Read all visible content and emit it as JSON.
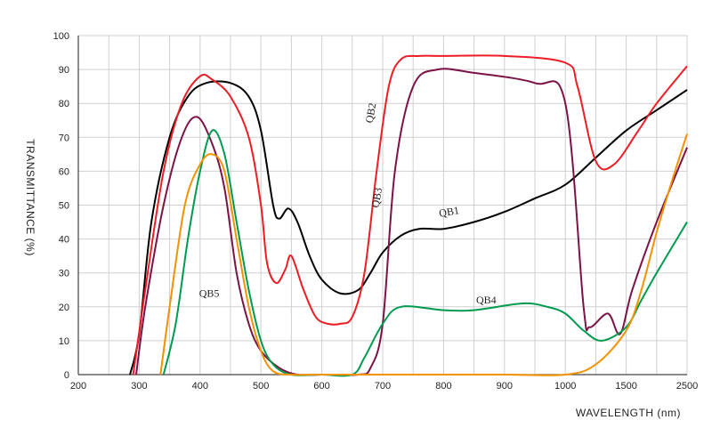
{
  "chart_data": {
    "type": "line",
    "xlabel": "WAVELENGTH (nm)",
    "ylabel": "TRANSMITTANCE   (%)",
    "x_ticks": [
      "200",
      "300",
      "400",
      "500",
      "600",
      "700",
      "800",
      "900",
      "1000",
      "1500",
      "2500"
    ],
    "y_ticks": [
      "0",
      "10",
      "20",
      "30",
      "40",
      "50",
      "60",
      "70",
      "80",
      "90",
      "100"
    ],
    "ylim": [
      0,
      100
    ],
    "grid": true,
    "legend": "none",
    "x_note": "x values are wavelengths in nm on a non-uniform axis (linear 200-1000, compressed 1000-2500)",
    "series": [
      {
        "name": "QB1",
        "color": "#000000",
        "points": [
          [
            285,
            0
          ],
          [
            300,
            12
          ],
          [
            320,
            45
          ],
          [
            350,
            70
          ],
          [
            380,
            82
          ],
          [
            410,
            86
          ],
          [
            450,
            86
          ],
          [
            480,
            82
          ],
          [
            500,
            72
          ],
          [
            520,
            50
          ],
          [
            530,
            46
          ],
          [
            545,
            49
          ],
          [
            560,
            45
          ],
          [
            580,
            35
          ],
          [
            600,
            28
          ],
          [
            630,
            24
          ],
          [
            660,
            25
          ],
          [
            680,
            30
          ],
          [
            700,
            36
          ],
          [
            730,
            41
          ],
          [
            760,
            43
          ],
          [
            800,
            43
          ],
          [
            850,
            45
          ],
          [
            900,
            48
          ],
          [
            950,
            52
          ],
          [
            1000,
            56
          ],
          [
            1250,
            64
          ],
          [
            1500,
            72
          ],
          [
            2000,
            78
          ],
          [
            2500,
            84
          ]
        ],
        "label_at": [
          810,
          47
        ]
      },
      {
        "name": "QB2",
        "color": "#ee1c25",
        "points": [
          [
            290,
            0
          ],
          [
            310,
            25
          ],
          [
            340,
            60
          ],
          [
            370,
            80
          ],
          [
            400,
            88
          ],
          [
            420,
            87
          ],
          [
            450,
            82
          ],
          [
            480,
            70
          ],
          [
            500,
            50
          ],
          [
            510,
            33
          ],
          [
            525,
            27
          ],
          [
            540,
            31
          ],
          [
            550,
            35
          ],
          [
            570,
            25
          ],
          [
            590,
            17
          ],
          [
            610,
            15
          ],
          [
            630,
            15
          ],
          [
            650,
            17
          ],
          [
            670,
            30
          ],
          [
            690,
            60
          ],
          [
            710,
            85
          ],
          [
            730,
            93
          ],
          [
            760,
            94
          ],
          [
            800,
            94
          ],
          [
            900,
            94
          ],
          [
            1000,
            92
          ],
          [
            1100,
            85
          ],
          [
            1250,
            63
          ],
          [
            1400,
            62
          ],
          [
            1700,
            72
          ],
          [
            2000,
            80
          ],
          [
            2500,
            91
          ]
        ],
        "label_at": [
          686,
          77
        ]
      },
      {
        "name": "QB3",
        "color": "#7b1347",
        "points": [
          [
            295,
            0
          ],
          [
            310,
            20
          ],
          [
            340,
            50
          ],
          [
            370,
            70
          ],
          [
            395,
            76
          ],
          [
            420,
            68
          ],
          [
            440,
            55
          ],
          [
            460,
            30
          ],
          [
            480,
            15
          ],
          [
            500,
            7
          ],
          [
            530,
            2
          ],
          [
            560,
            0
          ],
          [
            600,
            0
          ],
          [
            660,
            0
          ],
          [
            680,
            2
          ],
          [
            700,
            15
          ],
          [
            720,
            60
          ],
          [
            750,
            85
          ],
          [
            790,
            90
          ],
          [
            850,
            89
          ],
          [
            950,
            86
          ],
          [
            1000,
            80
          ],
          [
            1150,
            20
          ],
          [
            1200,
            14
          ],
          [
            1350,
            18
          ],
          [
            1450,
            12
          ],
          [
            1600,
            25
          ],
          [
            2000,
            45
          ],
          [
            2500,
            67
          ]
        ],
        "label_at": [
          696,
          52
        ]
      },
      {
        "name": "QB4",
        "color": "#009a4e",
        "points": [
          [
            340,
            0
          ],
          [
            360,
            15
          ],
          [
            380,
            40
          ],
          [
            400,
            60
          ],
          [
            420,
            72
          ],
          [
            440,
            65
          ],
          [
            460,
            45
          ],
          [
            480,
            25
          ],
          [
            500,
            10
          ],
          [
            520,
            3
          ],
          [
            550,
            0
          ],
          [
            600,
            0
          ],
          [
            650,
            0
          ],
          [
            670,
            5
          ],
          [
            700,
            15
          ],
          [
            730,
            20
          ],
          [
            800,
            19
          ],
          [
            850,
            19
          ],
          [
            930,
            21
          ],
          [
            970,
            20
          ],
          [
            1000,
            18
          ],
          [
            1150,
            13
          ],
          [
            1300,
            10
          ],
          [
            1500,
            14
          ],
          [
            1750,
            22
          ],
          [
            2000,
            30
          ],
          [
            2500,
            45
          ]
        ],
        "label_at": [
          870,
          21
        ]
      },
      {
        "name": "QB5",
        "color": "#f39200",
        "points": [
          [
            335,
            0
          ],
          [
            350,
            20
          ],
          [
            375,
            50
          ],
          [
            400,
            62
          ],
          [
            420,
            65
          ],
          [
            440,
            60
          ],
          [
            460,
            40
          ],
          [
            480,
            20
          ],
          [
            500,
            7
          ],
          [
            520,
            1
          ],
          [
            550,
            0
          ],
          [
            600,
            0
          ],
          [
            700,
            0
          ],
          [
            800,
            0
          ],
          [
            900,
            0
          ],
          [
            1000,
            0
          ],
          [
            1250,
            3
          ],
          [
            1500,
            13
          ],
          [
            1750,
            25
          ],
          [
            2000,
            42
          ],
          [
            2250,
            57
          ],
          [
            2500,
            71
          ]
        ],
        "label_at": [
          415,
          23
        ]
      }
    ]
  }
}
